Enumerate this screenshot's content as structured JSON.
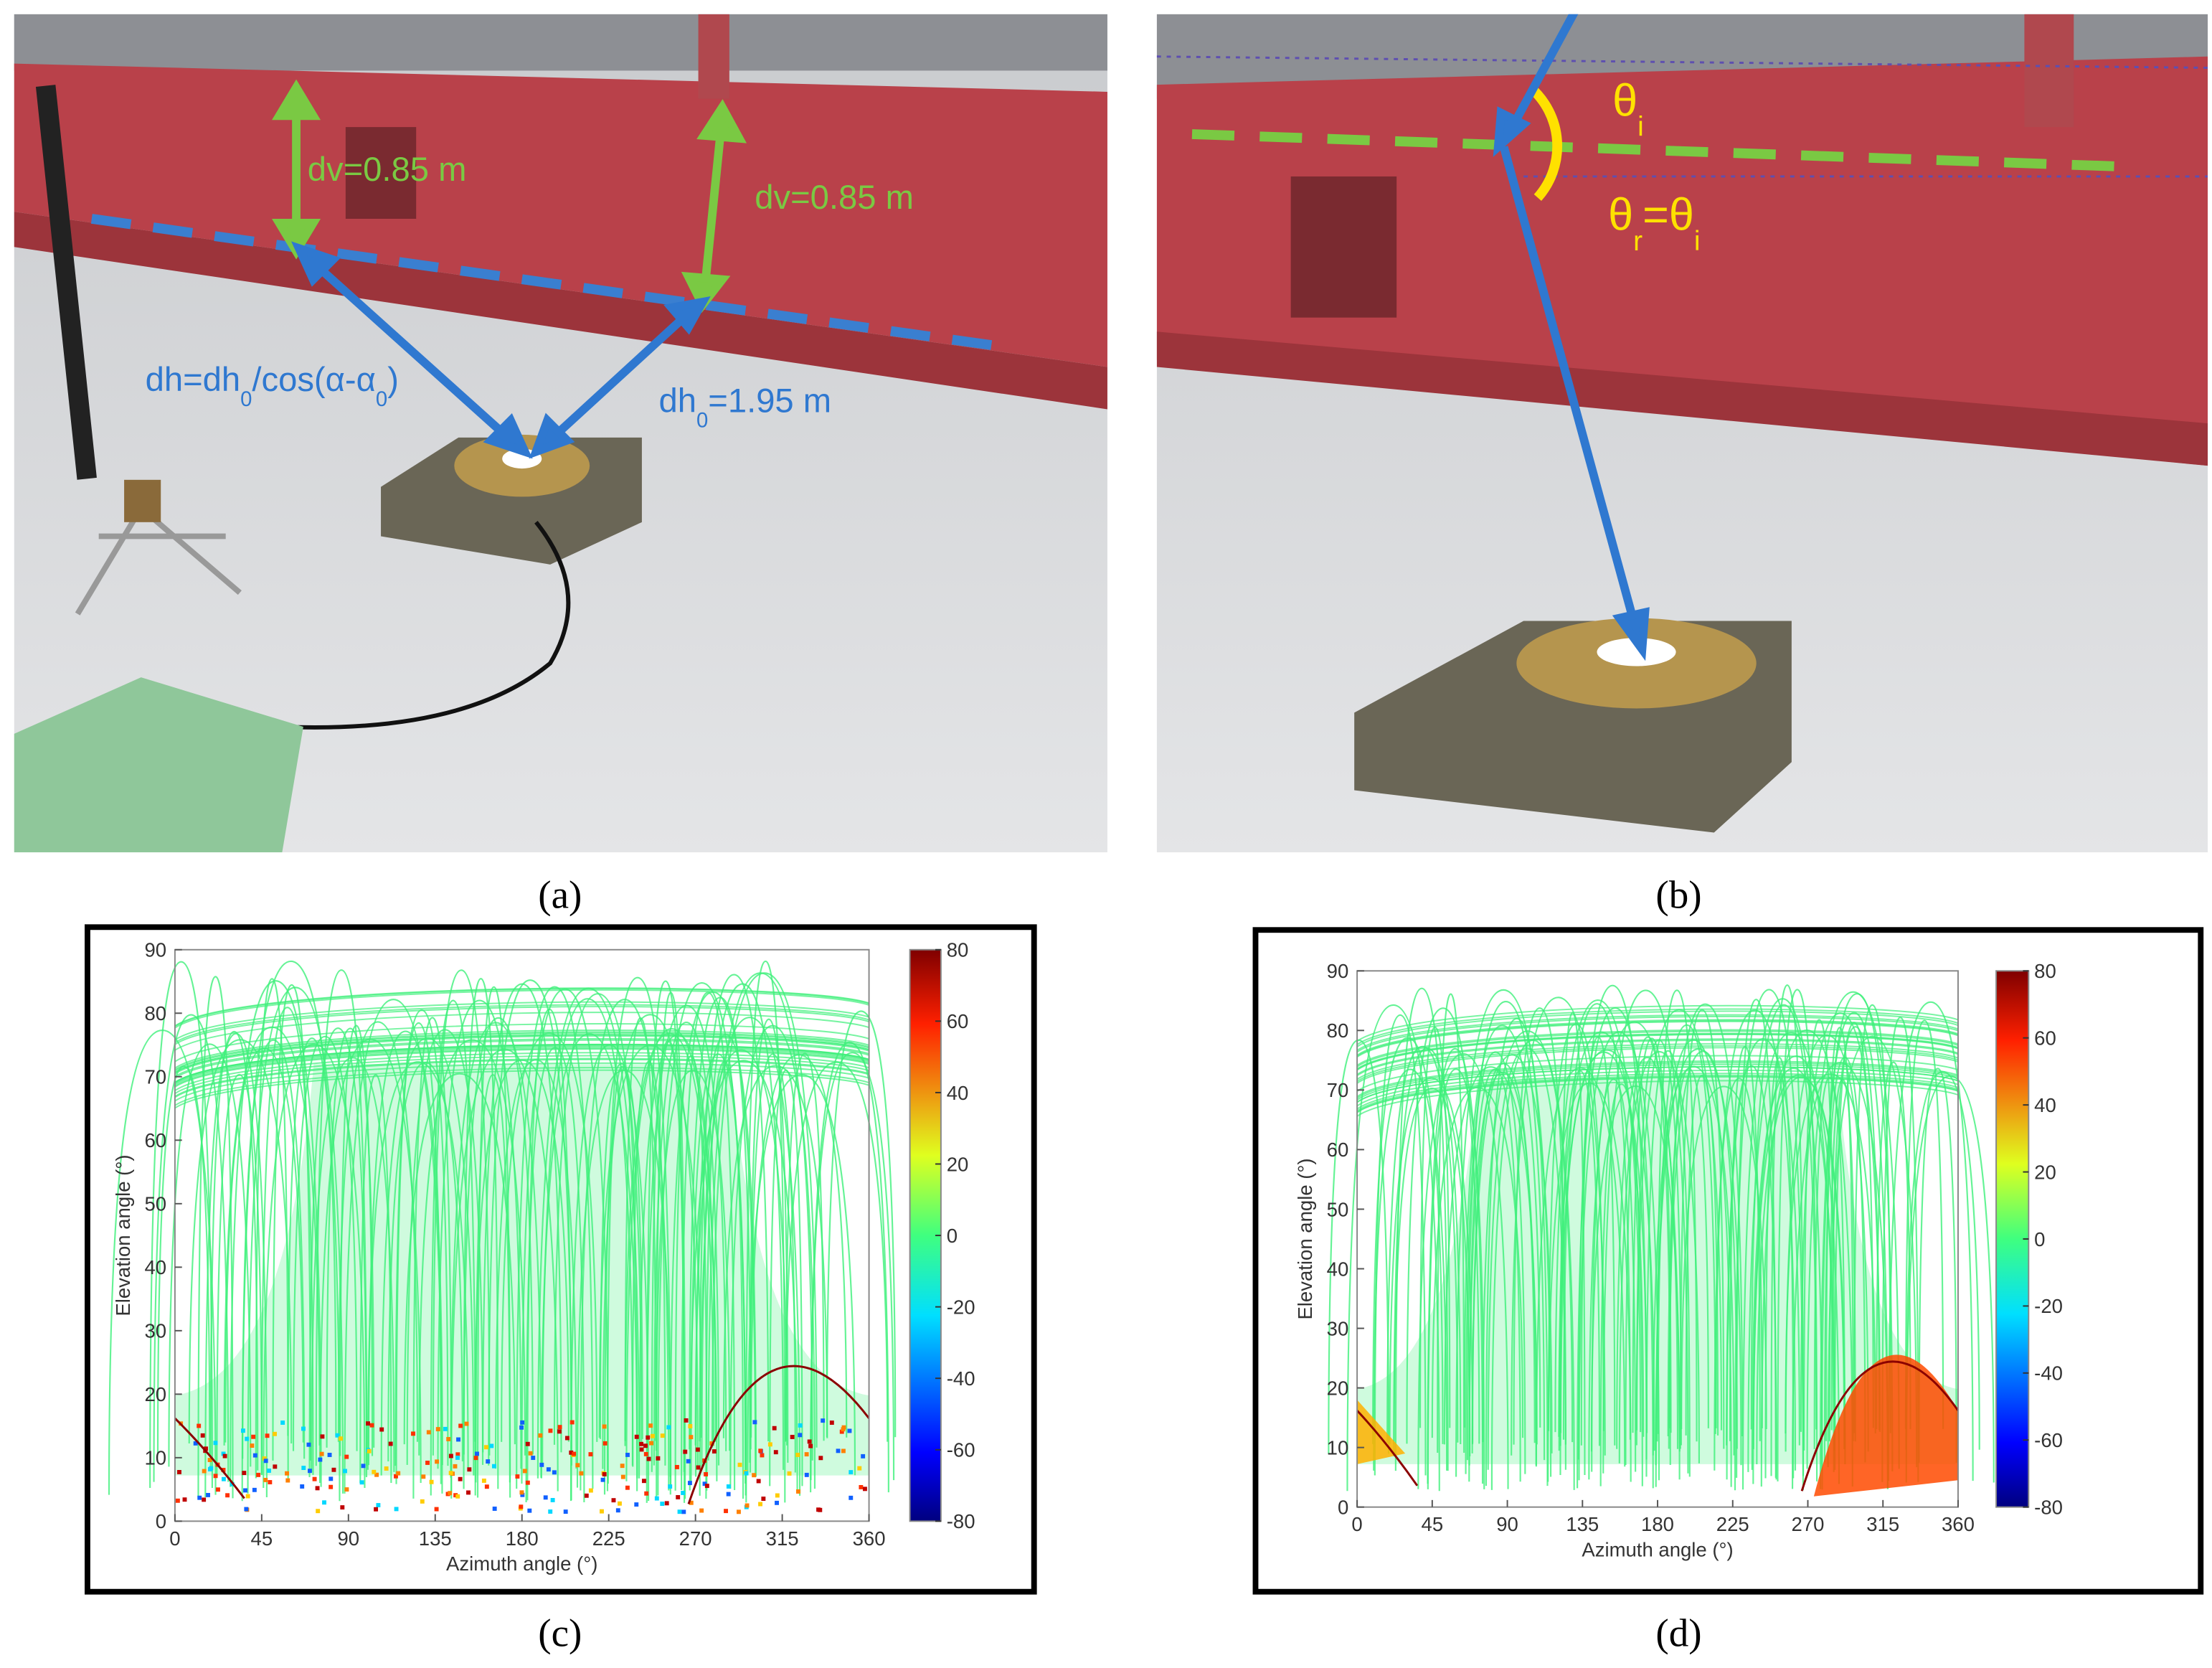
{
  "photos": [
    {
      "label": "(a)",
      "annotations": [
        {
          "parts": [
            "dv=0.85 m"
          ]
        },
        {
          "parts": [
            "dv=0.85 m"
          ]
        },
        {
          "parts": [
            "dh=dh",
            "0",
            "/cos(α-α",
            "0",
            ")"
          ]
        },
        {
          "parts": [
            "dh",
            "0",
            "=1.95 m"
          ]
        }
      ]
    },
    {
      "label": "(b)",
      "annotations": [
        {
          "parts": [
            "θ",
            "i"
          ]
        },
        {
          "parts": [
            "θ",
            "r",
            "=θ",
            "i"
          ]
        }
      ]
    }
  ],
  "chart_data": [
    {
      "type": "scatter",
      "label": "(c)",
      "xlabel": "Azimuth angle (°)",
      "ylabel": "Elevation angle (°)",
      "xlim": [
        0,
        360
      ],
      "xticks": [
        0,
        45,
        90,
        135,
        180,
        225,
        270,
        315,
        360
      ],
      "ylim": [
        0,
        90
      ],
      "yticks": [
        0,
        10,
        20,
        30,
        40,
        50,
        60,
        70,
        80,
        90
      ],
      "colorbar": {
        "lim": [
          -80,
          80
        ],
        "ticks": [
          -80,
          -60,
          -40,
          -20,
          0,
          20,
          40,
          60,
          80
        ]
      }
    },
    {
      "type": "scatter",
      "label": "(d)",
      "xlabel": "Azimuth angle (°)",
      "ylabel": "Elevation angle (°)",
      "xlim": [
        0,
        360
      ],
      "xticks": [
        0,
        45,
        90,
        135,
        180,
        225,
        270,
        315,
        360
      ],
      "ylim": [
        0,
        90
      ],
      "yticks": [
        0,
        10,
        20,
        30,
        40,
        50,
        60,
        70,
        80,
        90
      ],
      "colorbar": {
        "lim": [
          -80,
          80
        ],
        "ticks": [
          -80,
          -60,
          -40,
          -20,
          0,
          20,
          40,
          60,
          80
        ]
      }
    }
  ]
}
